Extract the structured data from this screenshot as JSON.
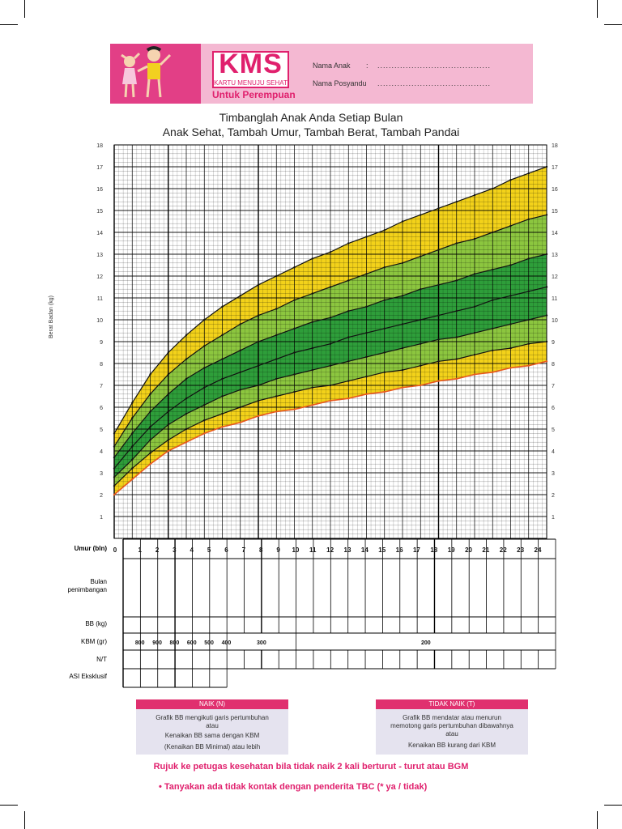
{
  "header": {
    "logo": "KMS",
    "logo_sub": "KARTU MENUJU SEHAT",
    "for_whom": "Untuk Perempuan",
    "name_label": "Nama Anak",
    "name_colon": ":",
    "name_dots": "........................................",
    "posyandu_label": "Nama Posyandu",
    "posyandu_dots": "........................................"
  },
  "title_line1": "Timbanglah Anak Anda Setiap Bulan",
  "title_line2": "Anak Sehat, Tambah Umur, Tambah Berat, Tambah Pandai",
  "chart_data": {
    "type": "line",
    "ylabel": "Berat Badan (kg)",
    "xlabel": "Umur (bln)",
    "x": [
      0,
      1,
      2,
      3,
      4,
      5,
      6,
      7,
      8,
      9,
      10,
      11,
      12,
      13,
      14,
      15,
      16,
      17,
      18,
      19,
      20,
      21,
      22,
      23,
      24
    ],
    "ylim": [
      0,
      18
    ],
    "yticks": [
      1,
      2,
      3,
      4,
      5,
      6,
      7,
      8,
      9,
      10,
      11,
      12,
      13,
      14,
      15,
      16,
      17,
      18
    ],
    "grid": true,
    "band_colors": {
      "outer": "#f3d21a",
      "middle": "#8cc63f",
      "inner": "#2e9e3a",
      "bgm_line": "#e8571b"
    },
    "series": [
      {
        "values": [
          2.0,
          2.7,
          3.4,
          4.0,
          4.4,
          4.8,
          5.1,
          5.3,
          5.6,
          5.8,
          5.9,
          6.1,
          6.3,
          6.4,
          6.6,
          6.7,
          6.9,
          7.0,
          7.2,
          7.3,
          7.5,
          7.6,
          7.8,
          7.9,
          8.1
        ]
      },
      {
        "values": [
          2.4,
          3.2,
          3.9,
          4.5,
          5.0,
          5.4,
          5.7,
          6.0,
          6.3,
          6.5,
          6.7,
          6.9,
          7.0,
          7.2,
          7.4,
          7.6,
          7.7,
          7.9,
          8.1,
          8.2,
          8.4,
          8.6,
          8.7,
          8.9,
          9.0
        ]
      },
      {
        "values": [
          2.8,
          3.6,
          4.5,
          5.2,
          5.7,
          6.1,
          6.5,
          6.8,
          7.0,
          7.3,
          7.5,
          7.7,
          7.9,
          8.1,
          8.3,
          8.5,
          8.7,
          8.9,
          9.1,
          9.2,
          9.4,
          9.6,
          9.8,
          10.0,
          10.2
        ]
      },
      {
        "values": [
          3.2,
          4.2,
          5.1,
          5.8,
          6.4,
          6.9,
          7.3,
          7.6,
          7.9,
          8.2,
          8.5,
          8.7,
          8.9,
          9.2,
          9.4,
          9.6,
          9.8,
          10.0,
          10.2,
          10.4,
          10.6,
          10.9,
          11.1,
          11.3,
          11.5
        ]
      },
      {
        "values": [
          3.7,
          4.8,
          5.8,
          6.6,
          7.3,
          7.8,
          8.2,
          8.6,
          9.0,
          9.3,
          9.6,
          9.9,
          10.1,
          10.4,
          10.6,
          10.9,
          11.1,
          11.4,
          11.6,
          11.8,
          12.1,
          12.3,
          12.5,
          12.8,
          13.0
        ]
      },
      {
        "values": [
          4.2,
          5.5,
          6.6,
          7.5,
          8.2,
          8.8,
          9.3,
          9.8,
          10.2,
          10.5,
          10.9,
          11.2,
          11.5,
          11.8,
          12.1,
          12.4,
          12.6,
          12.9,
          13.2,
          13.5,
          13.7,
          14.0,
          14.3,
          14.6,
          14.8
        ]
      },
      {
        "values": [
          4.8,
          6.2,
          7.5,
          8.5,
          9.3,
          10.0,
          10.6,
          11.1,
          11.6,
          12.0,
          12.4,
          12.8,
          13.1,
          13.5,
          13.8,
          14.1,
          14.5,
          14.8,
          15.1,
          15.4,
          15.7,
          16.0,
          16.4,
          16.7,
          17.0
        ]
      }
    ]
  },
  "table": {
    "row_umur": "Umur (bln)",
    "row_bulan_1": "Bulan",
    "row_bulan_2": "penimbangan",
    "row_bb": "BB (kg)",
    "row_kbm": "KBM (gr)",
    "row_nt": "N/T",
    "row_asi": "ASI Eksklusif",
    "months": [
      "0",
      "1",
      "2",
      "3",
      "4",
      "5",
      "6",
      "7",
      "8",
      "9",
      "10",
      "11",
      "12",
      "13",
      "14",
      "15",
      "16",
      "17",
      "18",
      "19",
      "20",
      "21",
      "22",
      "23",
      "24"
    ],
    "kbm": [
      "800",
      "900",
      "800",
      "600",
      "500",
      "400"
    ],
    "kbm_mid": "300",
    "kbm_late": "200"
  },
  "legend": {
    "naik_title": "NAIK (N)",
    "naik_lines": [
      "Grafik BB mengikuti garis pertumbuhan",
      "atau",
      "Kenaikan BB sama dengan KBM",
      "(Kenaikan BB Minimal) atau lebih"
    ],
    "tidak_title": "TIDAK NAIK (T)",
    "tidak_lines": [
      "Grafik BB mendatar atau menurun",
      "memotong garis pertumbuhan dibawahnya",
      "atau",
      "Kenaikan BB kurang dari KBM"
    ]
  },
  "note_rujuk": "Rujuk ke petugas kesehatan bila tidak naik 2 kali berturut - turut atau BGM",
  "note_tbc": "•   Tanyakan ada tidak kontak dengan penderita TBC (* ya / tidak)"
}
